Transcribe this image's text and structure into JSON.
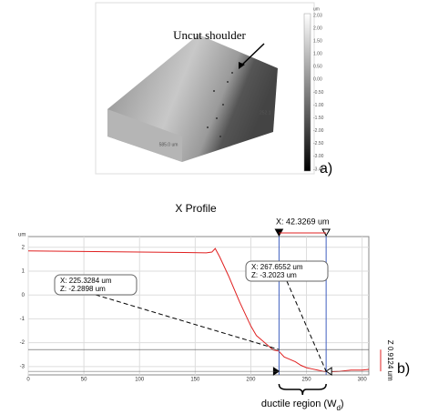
{
  "surface_image": {
    "annotation": "Uncut shoulder",
    "x_length": "585.0 um",
    "y_length": "252.1",
    "colorbar_unit": "um",
    "colorbar_labels": [
      "2.03",
      "2.00",
      "1.50",
      "1.00",
      "0.50",
      "0.00",
      "-0.50",
      "-1.00",
      "-1.50",
      "-2.00",
      "-2.50",
      "-3.00",
      "-3.48"
    ],
    "panel_label": "a)"
  },
  "chart_data": {
    "type": "line",
    "title": "X Profile",
    "y_unit": "um",
    "panel_label": "b)",
    "x": [
      0,
      20,
      40,
      60,
      80,
      100,
      120,
      140,
      160,
      165,
      168,
      172,
      180,
      190,
      200,
      205,
      210,
      215,
      220,
      225,
      230,
      235,
      240,
      245,
      250,
      255,
      260,
      265,
      270,
      280,
      290,
      300,
      306
    ],
    "series": [
      {
        "color": "#e02020",
        "values": [
          1.85,
          1.84,
          1.83,
          1.82,
          1.81,
          1.8,
          1.79,
          1.78,
          1.77,
          1.8,
          1.95,
          1.6,
          0.8,
          -0.3,
          -1.3,
          -1.7,
          -1.9,
          -2.1,
          -2.3,
          -2.35,
          -2.6,
          -2.7,
          -2.8,
          -2.95,
          -3.05,
          -3.1,
          -3.15,
          -3.2,
          -3.22,
          -3.2,
          -3.15,
          -3.15,
          -3.12
        ]
      }
    ],
    "xlim": [
      0,
      306
    ],
    "ylim": [
      -3.35,
      2.45
    ],
    "xticks": [
      0,
      50,
      100,
      150,
      200,
      250,
      300
    ],
    "yticks": [
      2,
      1,
      0,
      -1,
      -2,
      -3
    ],
    "grid": true,
    "cursors": [
      {
        "x": 225.3284,
        "z": -2.2898,
        "label_x": "X: 225.3284 um",
        "label_z": "Z: -2.2898 um"
      },
      {
        "x": 267.6552,
        "z": -3.2023,
        "label_x": "X: 267.6552 um",
        "label_z": "Z: -3.2023 um"
      }
    ],
    "delta_x_label": "X: 42.3269 um",
    "delta_z_label": "Z 0.9124 um",
    "region_label": "ductile region (W",
    "region_subscript": "d",
    "region_close": ")"
  }
}
